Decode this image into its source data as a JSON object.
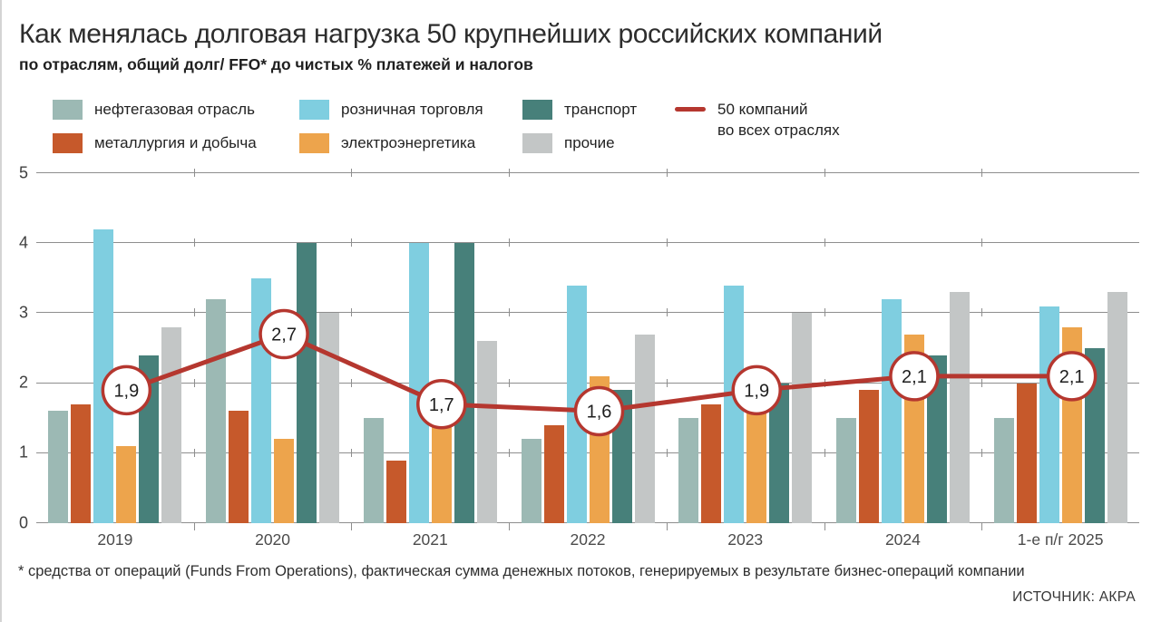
{
  "header": {
    "title": "Как менялась долговая нагрузка 50 крупнейших российских компаний",
    "subtitle": "по отраслям, общий долг/ FFO* до чистых % платежей и налогов"
  },
  "footnote": "* средства от операций (Funds From Operations), фактическая сумма денежных потоков, генерируемых в результате бизнес-операций компании",
  "source": "ИСТОЧНИК: АКРА",
  "chart_data": {
    "type": "bar",
    "title": "Как менялась долговая нагрузка 50 крупнейших российских компаний",
    "subtitle": "по отраслям, общий долг/ FFO* до чистых % платежей и налогов",
    "categories": [
      "2019",
      "2020",
      "2021",
      "2022",
      "2023",
      "2024",
      "1-е п/г 2025"
    ],
    "series": [
      {
        "name": "нефтегазовая отрасль",
        "color": "#9CB9B4",
        "values": [
          1.6,
          3.2,
          1.5,
          1.2,
          1.5,
          1.5,
          1.5
        ]
      },
      {
        "name": "металлургия и добыча",
        "color": "#C6592B",
        "values": [
          1.7,
          1.6,
          0.9,
          1.4,
          1.7,
          1.9,
          2.0
        ]
      },
      {
        "name": "розничная торговля",
        "color": "#7FCEE0",
        "values": [
          4.2,
          3.5,
          4.0,
          3.4,
          3.4,
          3.2,
          3.1
        ]
      },
      {
        "name": "электроэнергетика",
        "color": "#EDA44C",
        "values": [
          1.1,
          1.2,
          1.7,
          2.1,
          1.8,
          2.7,
          2.8
        ]
      },
      {
        "name": "транспорт",
        "color": "#47807A",
        "values": [
          2.4,
          4.0,
          4.0,
          1.9,
          2.0,
          2.4,
          2.5
        ]
      },
      {
        "name": "прочие",
        "color": "#C3C6C6",
        "values": [
          2.8,
          3.0,
          2.6,
          2.7,
          3.0,
          3.3,
          3.3
        ]
      }
    ],
    "line_series": {
      "name": "50 компаний во всех отраслях",
      "name_lines": [
        "50 компаний",
        "во всех отраслях"
      ],
      "color": "#B5372F",
      "values": [
        1.9,
        2.7,
        1.7,
        1.6,
        1.9,
        2.1,
        2.1
      ],
      "labels": [
        "1,9",
        "2,7",
        "1,7",
        "1,6",
        "1,9",
        "2,1",
        "2,1"
      ]
    },
    "xlabel": "",
    "ylabel": "",
    "ylim": [
      0,
      5
    ],
    "yticks": [
      0,
      1,
      2,
      3,
      4,
      5
    ],
    "grid": true,
    "legend_position": "top"
  }
}
